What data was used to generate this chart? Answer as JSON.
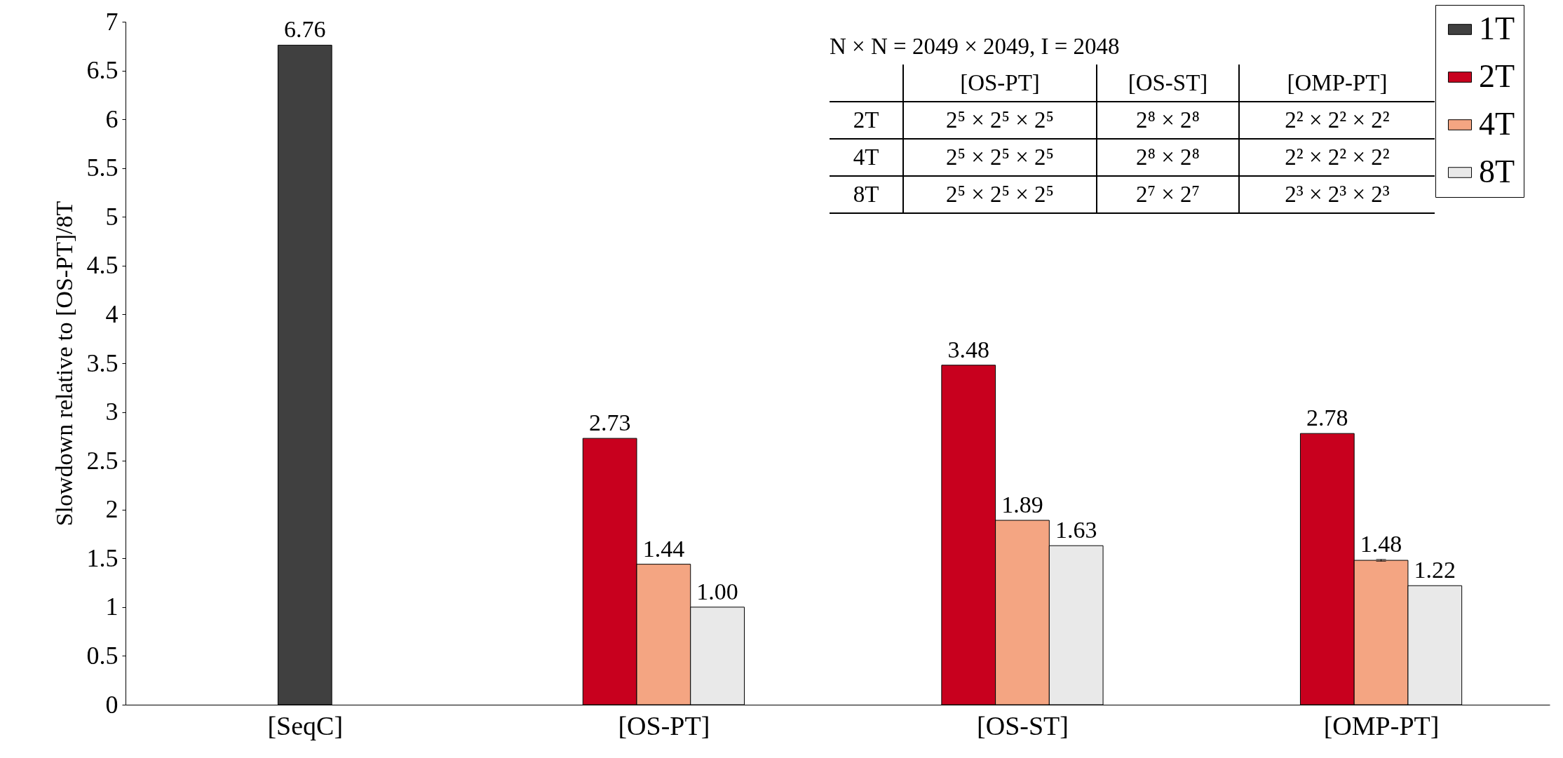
{
  "chart_data": {
    "type": "bar",
    "categories": [
      "[SeqC]",
      "[OS-PT]",
      "[OS-ST]",
      "[OMP-PT]"
    ],
    "series": [
      {
        "name": "1T",
        "color": "#404040",
        "values": [
          6.76,
          null,
          null,
          null
        ],
        "value_labels": [
          "6.76",
          null,
          null,
          null
        ]
      },
      {
        "name": "2T",
        "color": "#c8001e",
        "values": [
          null,
          2.73,
          3.48,
          2.78
        ],
        "value_labels": [
          null,
          "2.73",
          "3.48",
          "2.78"
        ]
      },
      {
        "name": "4T",
        "color": "#f4a582",
        "values": [
          null,
          1.44,
          1.89,
          1.48
        ],
        "value_labels": [
          null,
          "1.44",
          "1.89",
          "1.48"
        ],
        "errors": [
          null,
          null,
          null,
          0.01
        ]
      },
      {
        "name": "8T",
        "color": "#e9e9e9",
        "values": [
          null,
          1.0,
          1.63,
          1.22
        ],
        "value_labels": [
          null,
          "1.00",
          "1.63",
          "1.22"
        ]
      }
    ],
    "ylabel": "Slowdown relative to [OS-PT]/8T",
    "ylim": [
      0,
      7
    ],
    "yticks": [
      0,
      0.5,
      1,
      1.5,
      2,
      2.5,
      3,
      3.5,
      4,
      4.5,
      5,
      5.5,
      6,
      6.5,
      7
    ],
    "legend": "top right",
    "grid": false,
    "annotations": [
      "N × N = 2049 × 2049, I = 2048",
      "[OS-PT]",
      "[OS-ST]",
      "[OMP-PT]",
      "2T",
      "2⁵ × 2⁵ × 2⁵",
      "2⁸ × 2⁸",
      "2² × 2² × 2²",
      "4T",
      "2⁵ × 2⁵ × 2⁵",
      "2⁸ × 2⁸",
      "2² × 2² × 2²",
      "8T",
      "2⁵ × 2⁵ × 2⁵",
      "2⁷ × 2⁷",
      "2³ × 2³ × 2³"
    ]
  }
}
